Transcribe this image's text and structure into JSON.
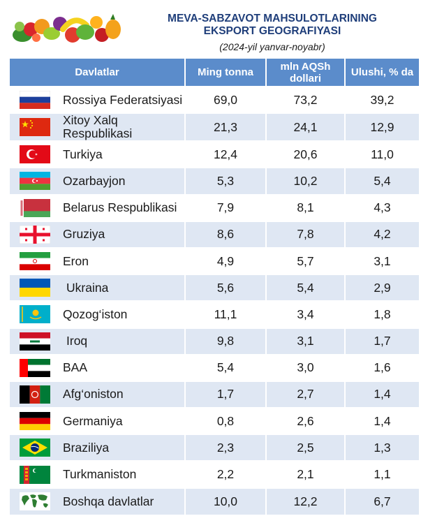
{
  "header": {
    "title_line1": "MEVA-SABZAVOT MAHSULOTLARINING",
    "title_line2": "EKSPORT GEOGRAFIYASI",
    "subtitle": "(2024-yil yanvar-noyabr)"
  },
  "table": {
    "columns": {
      "country": "Davlatlar",
      "tons": "Ming tonna",
      "usd": "mln AQSh dollari",
      "share": "Ulushi, % da"
    },
    "rows": [
      {
        "country": "Rossiya Federatsiyasi",
        "flag": "russia-flag-icon",
        "tons": "69,0",
        "usd": "73,2",
        "share": "39,2"
      },
      {
        "country": "Xitoy Xalq Respublikasi",
        "flag": "china-flag-icon",
        "tons": "21,3",
        "usd": "24,1",
        "share": "12,9"
      },
      {
        "country": "Turkiya",
        "flag": "turkey-flag-icon",
        "tons": "12,4",
        "usd": "20,6",
        "share": "11,0"
      },
      {
        "country": "Ozarbayjon",
        "flag": "azerbaijan-flag-icon",
        "tons": "5,3",
        "usd": "10,2",
        "share": "5,4"
      },
      {
        "country": "Belarus Respublikasi",
        "flag": "belarus-flag-icon",
        "tons": "7,9",
        "usd": "8,1",
        "share": "4,3"
      },
      {
        "country": "Gruziya",
        "flag": "georgia-flag-icon",
        "tons": "8,6",
        "usd": "7,8",
        "share": "4,2"
      },
      {
        "country": "Eron",
        "flag": "iran-flag-icon",
        "tons": "4,9",
        "usd": "5,7",
        "share": "3,1"
      },
      {
        "country": "Ukraina",
        "flag": "ukraine-flag-icon",
        "tons": "5,6",
        "usd": "5,4",
        "share": "2,9"
      },
      {
        "country": "Qozog‘iston",
        "flag": "kazakhstan-flag-icon",
        "tons": "11,1",
        "usd": "3,4",
        "share": "1,8"
      },
      {
        "country": "Iroq",
        "flag": "iraq-flag-icon",
        "tons": "9,8",
        "usd": "3,1",
        "share": "1,7"
      },
      {
        "country": "BAA",
        "flag": "uae-flag-icon",
        "tons": "5,4",
        "usd": "3,0",
        "share": "1,6"
      },
      {
        "country": "Afg‘oniston",
        "flag": "afghanistan-flag-icon",
        "tons": "1,7",
        "usd": "2,7",
        "share": "1,4"
      },
      {
        "country": "Germaniya",
        "flag": "germany-flag-icon",
        "tons": "0,8",
        "usd": "2,6",
        "share": "1,4"
      },
      {
        "country": "Braziliya",
        "flag": "brazil-flag-icon",
        "tons": "2,3",
        "usd": "2,5",
        "share": "1,3"
      },
      {
        "country": "Turkmaniston",
        "flag": "turkmenistan-flag-icon",
        "tons": "2,2",
        "usd": "2,1",
        "share": "1,1"
      },
      {
        "country": "Boshqa davlatlar",
        "flag": "world-map-icon",
        "tons": "10,0",
        "usd": "12,2",
        "share": "6,7"
      }
    ]
  },
  "colors": {
    "header_bg": "#5b8ccb",
    "row_alt_bg": "#dfe7f3",
    "title_color": "#1f3e7a"
  }
}
